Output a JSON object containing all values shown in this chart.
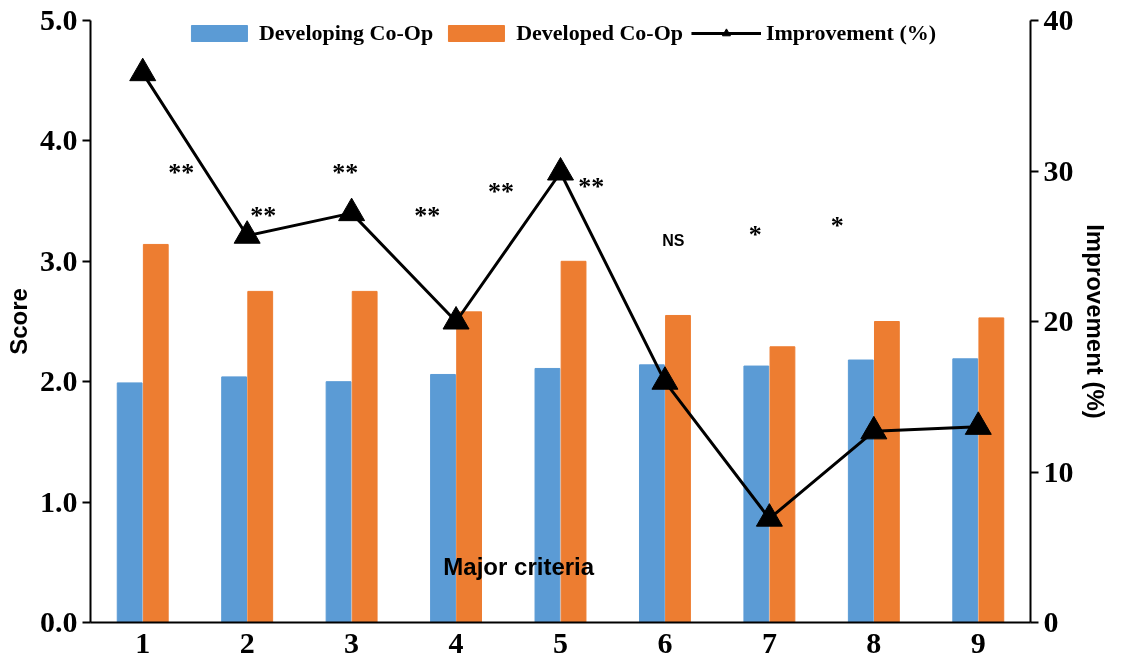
{
  "chart_data": {
    "type": "bar",
    "categories": [
      "1",
      "2",
      "3",
      "4",
      "5",
      "6",
      "7",
      "8",
      "9"
    ],
    "xlabel": "Major criteria",
    "ylabel": "Score",
    "y2label": "Improvement (%)",
    "series": [
      {
        "name": "Developing Co-Op",
        "color": "#5b9bd5",
        "values": [
          1.99,
          2.04,
          2.0,
          2.06,
          2.11,
          2.14,
          2.13,
          2.18,
          2.19
        ]
      },
      {
        "name": "Developed Co-Op",
        "color": "#ed7d31",
        "values": [
          3.14,
          2.75,
          2.75,
          2.58,
          3.0,
          2.55,
          2.29,
          2.5,
          2.53
        ]
      },
      {
        "name": "Improvement (%)",
        "type": "line",
        "axis": "y2",
        "color": "#000000",
        "marker": "triangle",
        "values": [
          36.5,
          25.7,
          27.2,
          20.0,
          29.9,
          16.0,
          6.9,
          12.7,
          13.0
        ]
      }
    ],
    "ylim": [
      0,
      5
    ],
    "yticks": [
      {
        "value": 0,
        "label": "0.0"
      },
      {
        "value": 1,
        "label": "1.0"
      },
      {
        "value": 2,
        "label": "2.0"
      },
      {
        "value": 3,
        "label": "3.0"
      },
      {
        "value": 4,
        "label": "4.0"
      },
      {
        "value": 5,
        "label": "5.0"
      }
    ],
    "y2lim": [
      0,
      40
    ],
    "y2ticks": [
      0,
      10,
      20,
      30,
      40
    ],
    "annotations": [
      "**",
      "**",
      "**",
      "**",
      "**",
      "**",
      "NS",
      "*",
      "*"
    ],
    "legend": "top",
    "grid": false
  }
}
